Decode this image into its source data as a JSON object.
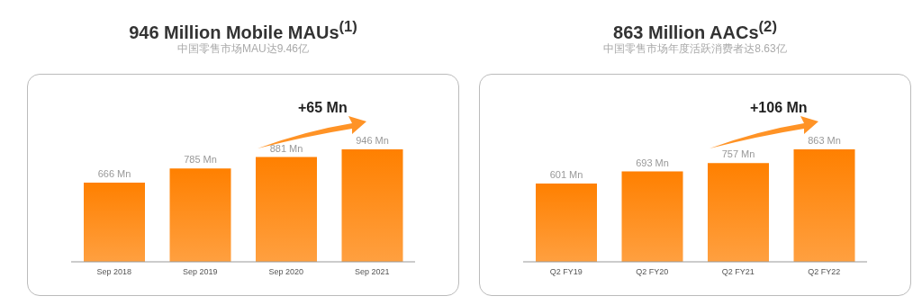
{
  "chart_data": [
    {
      "type": "bar",
      "title": "946 Million Mobile MAUs$^{(1)}$",
      "subtitle": "中国零售市场MAU达9.46亿",
      "categories": [
        "Sep 2018",
        "Sep 2019",
        "Sep 2020",
        "Sep 2021"
      ],
      "values": [
        666,
        785,
        881,
        946
      ],
      "value_labels": [
        "666 Mn",
        "785 Mn",
        "881 Mn",
        "946 Mn"
      ],
      "color": "#ff8000",
      "annotations": [
        "+65 Mn"
      ]
    },
    {
      "type": "bar",
      "title": "863 Million AACs$^{(2)}$",
      "subtitle": "中国零售市场年度活跃消费者达8.63亿",
      "categories": [
        "Q2 FY19",
        "Q2 FY20",
        "Q2 FY21",
        "Q2 FY22"
      ],
      "values": [
        601,
        693,
        757,
        863
      ],
      "value_labels": [
        "601 Mn",
        "693 Mn",
        "757 Mn",
        "863 Mn"
      ],
      "color": "#ff8000",
      "annotations": [
        "+106 Mn"
      ]
    }
  ]
}
